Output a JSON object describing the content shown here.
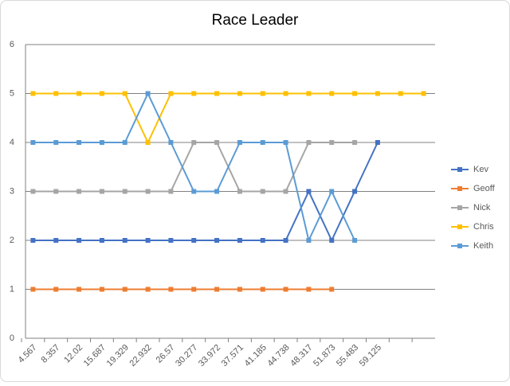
{
  "chart_data": {
    "type": "line",
    "title": "Race Leader",
    "categories": [
      "4.567",
      "8.357",
      "12.02",
      "15.687",
      "19.329",
      "22.932",
      "26.57",
      "30.277",
      "33.972",
      "37.571",
      "41.185",
      "44.738",
      "48.317",
      "51.873",
      "55.483",
      "59.125",
      null,
      null
    ],
    "series": [
      {
        "name": "Kev",
        "color": "#4472c4",
        "values": [
          2,
          2,
          2,
          2,
          2,
          2,
          2,
          2,
          2,
          2,
          2,
          2,
          3,
          2,
          3,
          4,
          null,
          null
        ]
      },
      {
        "name": "Geoff",
        "color": "#ed7d31",
        "values": [
          1,
          1,
          1,
          1,
          1,
          1,
          1,
          1,
          1,
          1,
          1,
          1,
          1,
          1,
          null,
          null,
          null,
          null
        ]
      },
      {
        "name": "Nick",
        "color": "#a5a5a5",
        "values": [
          3,
          3,
          3,
          3,
          3,
          3,
          3,
          4,
          4,
          3,
          3,
          3,
          4,
          4,
          4,
          null,
          null,
          null
        ]
      },
      {
        "name": "Chris",
        "color": "#ffc000",
        "values": [
          5,
          5,
          5,
          5,
          5,
          4,
          5,
          5,
          5,
          5,
          5,
          5,
          5,
          5,
          5,
          5,
          5,
          5
        ]
      },
      {
        "name": "Keith",
        "color": "#5b9bd5",
        "values": [
          4,
          4,
          4,
          4,
          4,
          5,
          4,
          3,
          3,
          4,
          4,
          4,
          2,
          3,
          2,
          null,
          null,
          null
        ]
      }
    ],
    "ylim": [
      0,
      6
    ],
    "yticks": [
      0,
      1,
      2,
      3,
      4,
      5,
      6
    ],
    "grid": true,
    "legend": "right"
  }
}
